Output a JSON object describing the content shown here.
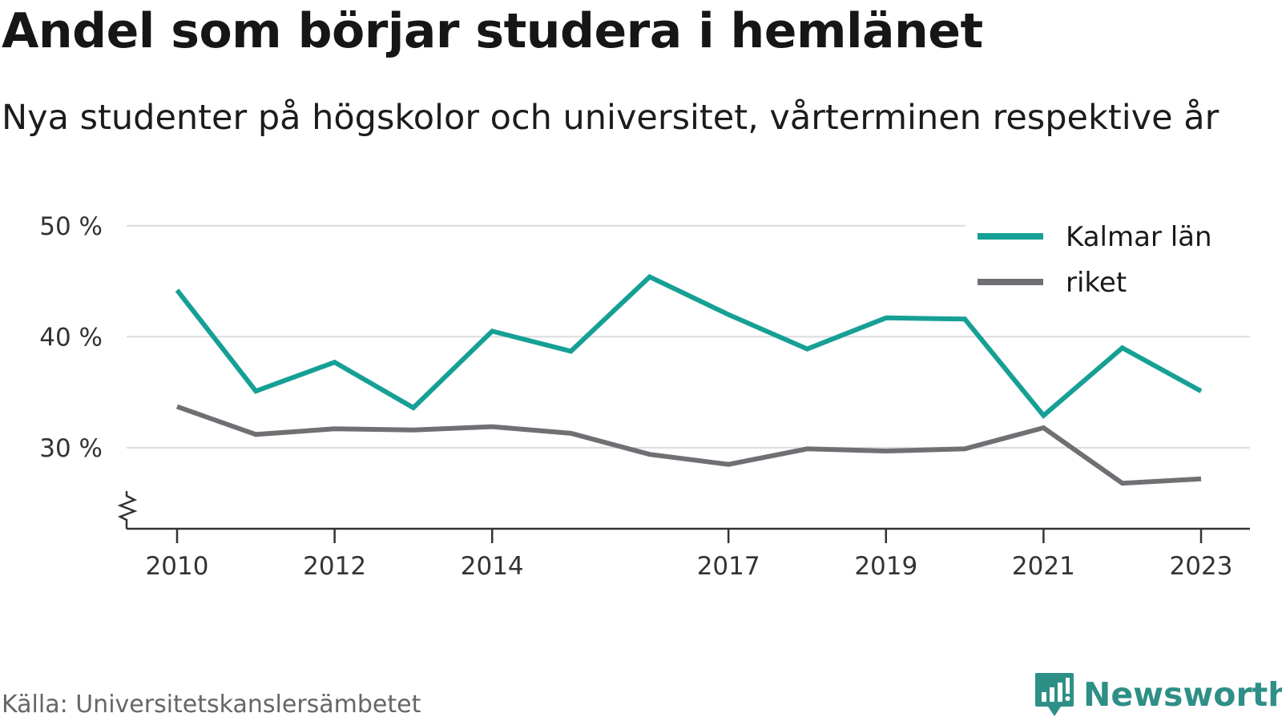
{
  "title": "Andel som börjar studera i hemlänet",
  "subtitle": "Nya studenter på högskolor och universitet, vårterminen respektive år",
  "source": "Källa: Universitetskanslersämbetet",
  "brand": "Newsworthy",
  "chart_data": {
    "type": "line",
    "x": [
      2010,
      2011,
      2012,
      2013,
      2014,
      2015,
      2016,
      2017,
      2018,
      2019,
      2020,
      2021,
      2022,
      2023
    ],
    "x_tick_labels": [
      "2010",
      "2012",
      "2014",
      "2017",
      "2019",
      "2021",
      "2023"
    ],
    "x_tick_values": [
      2010,
      2012,
      2014,
      2017,
      2019,
      2021,
      2023
    ],
    "y_ticks": [
      30,
      40,
      50
    ],
    "y_tick_labels": [
      "30 %",
      "40 %",
      "50 %"
    ],
    "ylim": [
      22.7,
      51
    ],
    "y_axis_break": true,
    "grid": true,
    "legend_position": "top-right",
    "series": [
      {
        "name": "Kalmar län",
        "color": "#16a095",
        "values": [
          44.2,
          35.1,
          37.7,
          33.6,
          40.5,
          38.7,
          45.4,
          42.0,
          38.9,
          41.7,
          41.6,
          32.9,
          39.0,
          35.1
        ]
      },
      {
        "name": "riket",
        "color": "#707074",
        "values": [
          33.7,
          31.2,
          31.7,
          31.6,
          31.9,
          31.3,
          29.4,
          28.5,
          29.9,
          29.7,
          29.9,
          31.8,
          26.8,
          27.2
        ]
      }
    ]
  }
}
